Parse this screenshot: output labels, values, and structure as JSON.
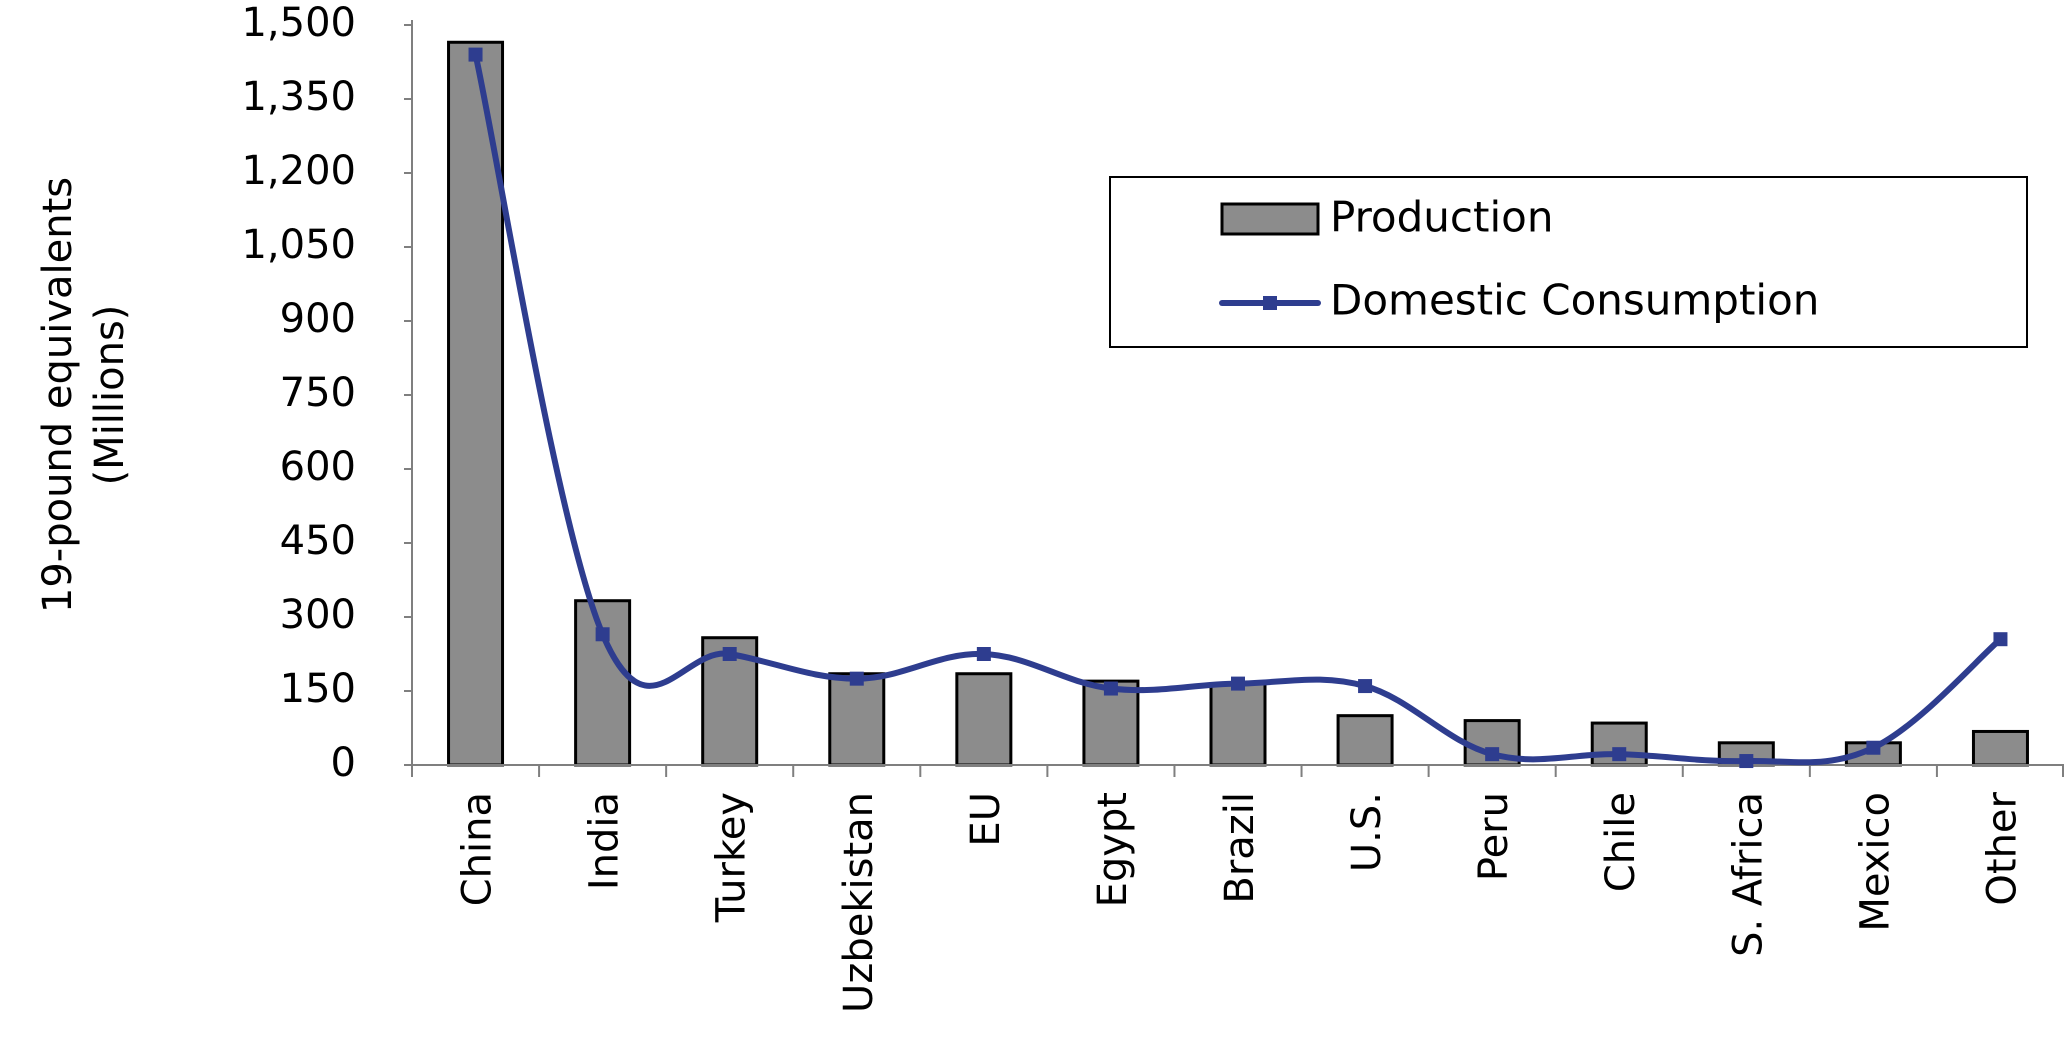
{
  "chart_data": {
    "type": "bar",
    "title": "",
    "xlabel": "",
    "ylabel": "19-pound equivalents (Millions)",
    "ylabel_lines": [
      "19-pound equivalents",
      "(Millions)"
    ],
    "ylim": [
      0,
      1500
    ],
    "yticks": [
      0,
      150,
      300,
      450,
      600,
      750,
      900,
      1050,
      1200,
      1350,
      1500
    ],
    "ytick_labels": [
      "0",
      "150",
      "300",
      "450",
      "600",
      "750",
      "900",
      "1,050",
      "1,200",
      "1,350",
      "1,500"
    ],
    "grid": false,
    "legend_position": "top-right",
    "categories": [
      "China",
      "India",
      "Turkey",
      "Uzbekistan",
      "EU",
      "Egypt",
      "Brazil",
      "U.S.",
      "Peru",
      "Chile",
      "S. Africa",
      "Mexico",
      "Other"
    ],
    "series": [
      {
        "name": "Production",
        "type": "bar",
        "color": "#8c8c8c",
        "values": [
          1465,
          333,
          258,
          185,
          185,
          170,
          165,
          100,
          90,
          85,
          45,
          45,
          68
        ]
      },
      {
        "name": "Domestic Consumption",
        "type": "line",
        "color": "#2e3d8f",
        "values": [
          1440,
          265,
          225,
          175,
          225,
          155,
          165,
          160,
          22,
          22,
          8,
          35,
          255
        ]
      }
    ]
  }
}
